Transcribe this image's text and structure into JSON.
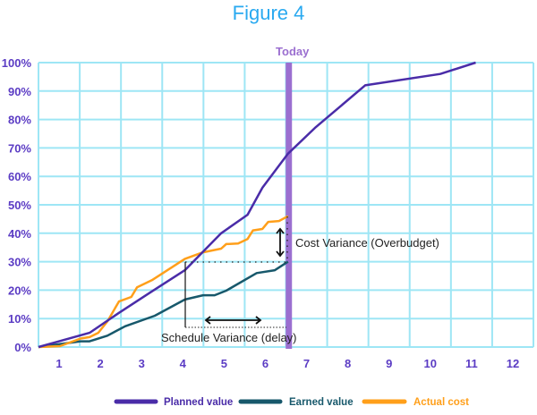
{
  "chart_data": {
    "type": "line",
    "title": "Figure 4",
    "xlabel": "",
    "ylabel": "",
    "x_ticks": [
      "1",
      "2",
      "3",
      "4",
      "5",
      "6",
      "7",
      "8",
      "9",
      "10",
      "11",
      "12"
    ],
    "y_ticks": [
      "0%",
      "10%",
      "20%",
      "30%",
      "40%",
      "50%",
      "60%",
      "70%",
      "80%",
      "90%",
      "100%"
    ],
    "xlim": [
      0.5,
      12.5
    ],
    "ylim": [
      0,
      100
    ],
    "grid": true,
    "legend_position": "bottom",
    "colors": {
      "grid": "#9ee6f5",
      "today": "#9b6fd0",
      "planned": "#4a2ca8",
      "earned": "#17586b",
      "actual": "#ff9f1a",
      "title": "#29a9f0",
      "ticks": "#5b3cc4"
    },
    "today": {
      "label": "Today",
      "x": 6.57
    },
    "series": [
      {
        "name": "Planned value",
        "color": "#4a2ca8",
        "x": [
          0.5,
          1.74,
          2.45,
          3.19,
          4.05,
          4.93,
          5.57,
          5.93,
          6.55,
          7.2,
          8.42,
          10.24,
          11.1
        ],
        "y": [
          0,
          5,
          12,
          19,
          27,
          40,
          46.5,
          56,
          68,
          77,
          92,
          96,
          100
        ]
      },
      {
        "name": "Earned value",
        "color": "#17586b",
        "x": [
          0.5,
          1.52,
          1.74,
          2.17,
          2.6,
          3.32,
          4.05,
          4.49,
          4.77,
          5.05,
          5.79,
          6.23,
          6.55
        ],
        "y": [
          0,
          2,
          2,
          4,
          7.3,
          11,
          16.7,
          18.2,
          18.2,
          19.8,
          26,
          27,
          30
        ]
      },
      {
        "name": "Actual cost",
        "color": "#ff9f1a",
        "x": [
          0.5,
          1.02,
          1.52,
          1.74,
          1.95,
          2.17,
          2.45,
          2.75,
          2.89,
          3.25,
          4.05,
          4.49,
          4.93,
          5.05,
          5.34,
          5.57,
          5.7,
          5.93,
          6.07,
          6.33,
          6.55
        ],
        "y": [
          0,
          0.3,
          3,
          3.5,
          5,
          9,
          16,
          17.6,
          21,
          23.5,
          31,
          33.3,
          34.6,
          36.2,
          36.4,
          38,
          41,
          41.5,
          44,
          44.3,
          46
        ]
      }
    ],
    "annotations": {
      "cost_variance": "Cost Variance (Overbudget)",
      "schedule_variance": "Schedule Variance (delay)"
    }
  }
}
